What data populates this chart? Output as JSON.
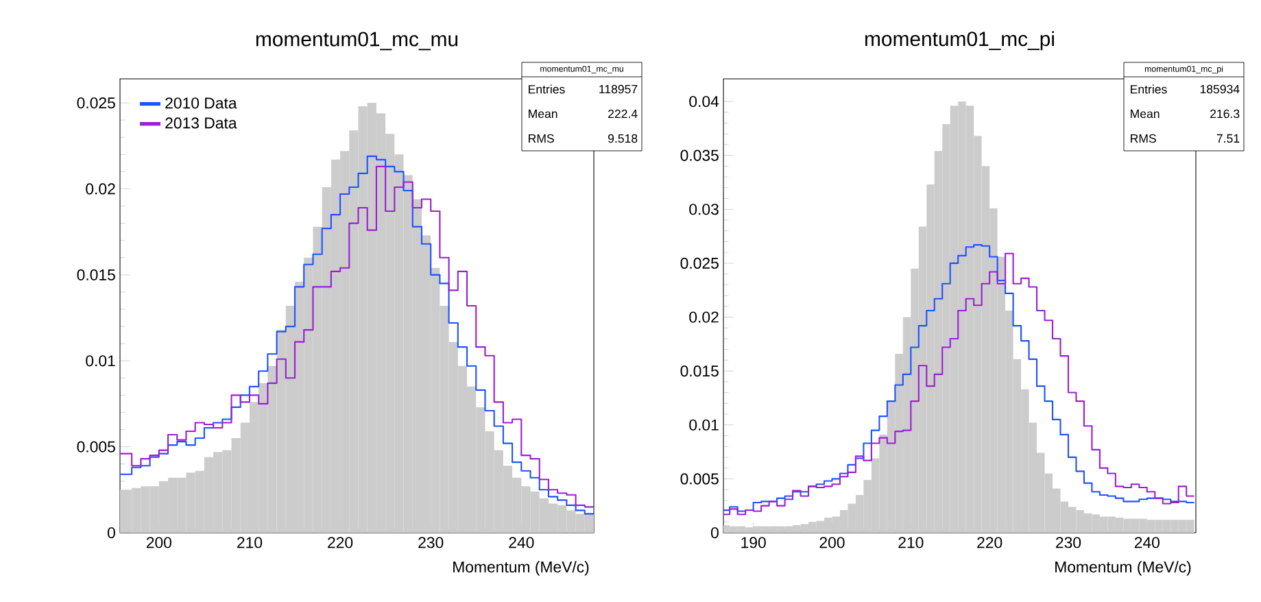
{
  "chart_data": [
    {
      "type": "histogram",
      "title": "momentum01_mc_mu",
      "xlabel": "Momentum (MeV/c)",
      "xlim": [
        195.7,
        248
      ],
      "ylim": [
        0,
        0.0264
      ],
      "xticks": [
        200,
        210,
        220,
        230,
        240
      ],
      "yticks": [
        0,
        0.005,
        0.01,
        0.015,
        0.02,
        0.025
      ],
      "grid": false,
      "legend": "top left",
      "bins": [
        195.7,
        197,
        198,
        199,
        200,
        201,
        202,
        203,
        204,
        205,
        206,
        207,
        208,
        209,
        210,
        211,
        212,
        213,
        214,
        215,
        216,
        217,
        218,
        219,
        220,
        221,
        222,
        223,
        224,
        225,
        226,
        227,
        228,
        229,
        230,
        231,
        232,
        233,
        234,
        235,
        236,
        237,
        238,
        239,
        240,
        241,
        242,
        243,
        244,
        245,
        246,
        247,
        248
      ],
      "series": [
        {
          "type": "histogram",
          "color": "#cccccc",
          "values": [
            0.0025,
            0.0026,
            0.0027,
            0.0027,
            0.003,
            0.0032,
            0.0032,
            0.0035,
            0.0036,
            0.0044,
            0.0047,
            0.0048,
            0.0055,
            0.0064,
            0.0076,
            0.0087,
            0.0097,
            0.0118,
            0.0132,
            0.0146,
            0.016,
            0.0178,
            0.0201,
            0.0217,
            0.0222,
            0.0234,
            0.0248,
            0.025,
            0.0244,
            0.0232,
            0.022,
            0.0208,
            0.0194,
            0.0173,
            0.0154,
            0.0132,
            0.0111,
            0.0097,
            0.0085,
            0.0073,
            0.0059,
            0.0048,
            0.0039,
            0.0032,
            0.0027,
            0.0024,
            0.002,
            0.0017,
            0.0016,
            0.0013,
            0.0011,
            0.0011
          ]
        },
        {
          "type": "step",
          "name": "2010 Data",
          "color": "#1f52ff",
          "x": [
            195.7,
            197,
            198,
            199,
            200,
            201,
            202,
            203,
            204,
            205,
            206,
            207,
            208,
            209,
            210,
            211,
            212,
            213,
            214,
            215,
            216,
            217,
            218,
            219,
            220,
            221,
            222,
            223,
            224,
            225,
            226,
            227,
            228,
            229,
            230,
            231,
            232,
            233,
            234,
            235,
            236,
            237,
            238,
            239,
            240,
            241,
            242,
            243,
            244,
            245,
            246,
            247,
            248
          ],
          "values": [
            0.0034,
            0.0038,
            0.0039,
            0.0044,
            0.0046,
            0.0051,
            0.0053,
            0.0051,
            0.0055,
            0.0061,
            0.0064,
            0.0066,
            0.0073,
            0.008,
            0.0085,
            0.0094,
            0.0104,
            0.0117,
            0.012,
            0.0143,
            0.0156,
            0.0162,
            0.0177,
            0.0185,
            0.0197,
            0.0201,
            0.0209,
            0.0219,
            0.0217,
            0.0213,
            0.021,
            0.0199,
            0.0178,
            0.0168,
            0.015,
            0.0145,
            0.0122,
            0.0108,
            0.0097,
            0.0083,
            0.0071,
            0.0062,
            0.0052,
            0.0041,
            0.0036,
            0.0032,
            0.0025,
            0.0021,
            0.0019,
            0.0016,
            0.0013,
            0.0011,
            0.0011
          ]
        },
        {
          "type": "step",
          "name": "2013 Data",
          "color": "#9b1fd3",
          "x": [
            195.7,
            197,
            198,
            199,
            200,
            201,
            202,
            203,
            204,
            205,
            206,
            207,
            208,
            209,
            210,
            211,
            212,
            213,
            214,
            215,
            216,
            217,
            218,
            219,
            220,
            221,
            222,
            223,
            224,
            225,
            226,
            227,
            228,
            229,
            230,
            231,
            232,
            233,
            234,
            235,
            236,
            237,
            238,
            239,
            240,
            241,
            242,
            243,
            244,
            245,
            246,
            247,
            248
          ],
          "values": [
            0.0046,
            0.0039,
            0.0043,
            0.0045,
            0.0048,
            0.0057,
            0.0054,
            0.0059,
            0.0064,
            0.0063,
            0.0061,
            0.0064,
            0.008,
            0.0076,
            0.008,
            0.0075,
            0.0087,
            0.0101,
            0.009,
            0.0111,
            0.0118,
            0.0143,
            0.0143,
            0.0152,
            0.0154,
            0.018,
            0.0189,
            0.0176,
            0.0213,
            0.0187,
            0.0201,
            0.0204,
            0.0189,
            0.0194,
            0.0187,
            0.016,
            0.0141,
            0.0152,
            0.0132,
            0.0108,
            0.0103,
            0.0076,
            0.0064,
            0.0066,
            0.0045,
            0.0043,
            0.0031,
            0.0025,
            0.0023,
            0.0022,
            0.0016,
            0.0015,
            0.0015
          ]
        }
      ],
      "annotations": [
        "momentum01_mc_mu",
        "Entries",
        "118957",
        "Mean",
        "222.4",
        "RMS",
        "9.518"
      ]
    },
    {
      "type": "histogram",
      "title": "momentum01_mc_pi",
      "xlabel": "Momentum (MeV/c)",
      "xlim": [
        186.2,
        246.2
      ],
      "ylim": [
        0,
        0.0421
      ],
      "xticks": [
        190,
        200,
        210,
        220,
        230,
        240
      ],
      "yticks": [
        0,
        0.005,
        0.01,
        0.015,
        0.02,
        0.025,
        0.03,
        0.035,
        0.04
      ],
      "grid": false,
      "bins": [
        186.2,
        187,
        188,
        189,
        190,
        191,
        192,
        193,
        194,
        195,
        196,
        197,
        198,
        199,
        200,
        201,
        202,
        203,
        204,
        205,
        206,
        207,
        208,
        209,
        210,
        211,
        212,
        213,
        214,
        215,
        216,
        217,
        218,
        219,
        220,
        221,
        222,
        223,
        224,
        225,
        226,
        227,
        228,
        229,
        230,
        231,
        232,
        233,
        234,
        235,
        236,
        237,
        238,
        239,
        240,
        241,
        242,
        243,
        244,
        245,
        246
      ],
      "series": [
        {
          "type": "histogram",
          "color": "#cccccc",
          "values": [
            0.0007,
            0.0006,
            0.0006,
            0.0005,
            0.0006,
            0.0006,
            0.0006,
            0.0006,
            0.0006,
            0.0007,
            0.0008,
            0.001,
            0.0011,
            0.0014,
            0.0015,
            0.0021,
            0.0027,
            0.0035,
            0.0049,
            0.0069,
            0.0091,
            0.0122,
            0.0166,
            0.02,
            0.0245,
            0.0284,
            0.0323,
            0.0354,
            0.0379,
            0.0396,
            0.04,
            0.0396,
            0.0368,
            0.034,
            0.0301,
            0.0256,
            0.0206,
            0.0161,
            0.0133,
            0.0102,
            0.0074,
            0.0055,
            0.0041,
            0.0029,
            0.0024,
            0.0021,
            0.0018,
            0.0017,
            0.0015,
            0.0015,
            0.0014,
            0.0013,
            0.0013,
            0.0013,
            0.0012,
            0.0012,
            0.0012,
            0.0012,
            0.0012,
            0.0012
          ]
        },
        {
          "type": "step",
          "color": "#1f52ff",
          "x": [
            186.2,
            187,
            188,
            189,
            190,
            191,
            192,
            193,
            194,
            195,
            196,
            197,
            198,
            199,
            200,
            201,
            202,
            203,
            204,
            205,
            206,
            207,
            208,
            209,
            210,
            211,
            212,
            213,
            214,
            215,
            216,
            217,
            218,
            219,
            220,
            221,
            222,
            223,
            224,
            225,
            226,
            227,
            228,
            229,
            230,
            231,
            232,
            233,
            234,
            235,
            236,
            237,
            238,
            239,
            240,
            241,
            242,
            243,
            244,
            245,
            246
          ],
          "values": [
            0.0021,
            0.0024,
            0.002,
            0.0021,
            0.0028,
            0.0029,
            0.0029,
            0.0032,
            0.0034,
            0.0038,
            0.0038,
            0.0043,
            0.0045,
            0.0048,
            0.005,
            0.0055,
            0.0063,
            0.0069,
            0.0083,
            0.0095,
            0.0108,
            0.0122,
            0.0137,
            0.0147,
            0.0172,
            0.0192,
            0.0206,
            0.0217,
            0.0231,
            0.025,
            0.0257,
            0.0265,
            0.0267,
            0.0266,
            0.0256,
            0.0234,
            0.0222,
            0.0192,
            0.0178,
            0.0161,
            0.0136,
            0.0122,
            0.0105,
            0.0091,
            0.007,
            0.0057,
            0.0046,
            0.0038,
            0.0035,
            0.0034,
            0.0032,
            0.0029,
            0.0029,
            0.0031,
            0.0032,
            0.0032,
            0.0031,
            0.0029,
            0.0029,
            0.0028,
            0.0028
          ]
        },
        {
          "type": "step",
          "color": "#9b1fd3",
          "x": [
            186.2,
            187,
            188,
            189,
            190,
            191,
            192,
            193,
            194,
            195,
            196,
            197,
            198,
            199,
            200,
            201,
            202,
            203,
            204,
            205,
            206,
            207,
            208,
            209,
            210,
            211,
            212,
            213,
            214,
            215,
            216,
            217,
            218,
            219,
            220,
            221,
            222,
            223,
            224,
            225,
            226,
            227,
            228,
            229,
            230,
            231,
            232,
            233,
            234,
            235,
            236,
            237,
            238,
            239,
            240,
            241,
            242,
            243,
            244,
            245,
            246
          ],
          "values": [
            0.0017,
            0.0022,
            0.0017,
            0.0021,
            0.002,
            0.0025,
            0.0029,
            0.0025,
            0.0031,
            0.0039,
            0.0034,
            0.0043,
            0.0042,
            0.0043,
            0.0045,
            0.0052,
            0.0056,
            0.0071,
            0.0067,
            0.0083,
            0.0088,
            0.0083,
            0.0094,
            0.0095,
            0.0122,
            0.0155,
            0.0136,
            0.0147,
            0.0172,
            0.018,
            0.0206,
            0.0217,
            0.0211,
            0.0231,
            0.0242,
            0.0231,
            0.0259,
            0.0231,
            0.0236,
            0.0228,
            0.0206,
            0.0197,
            0.018,
            0.0164,
            0.013,
            0.0122,
            0.0099,
            0.0077,
            0.006,
            0.0055,
            0.0043,
            0.0042,
            0.0045,
            0.0042,
            0.0038,
            0.0032,
            0.0027,
            0.0028,
            0.0043,
            0.0034,
            0.0034
          ]
        }
      ],
      "annotations": [
        "momentum01_mc_pi",
        "Entries",
        "185934",
        "Mean",
        "216.3",
        "RMS",
        "7.51"
      ]
    }
  ]
}
